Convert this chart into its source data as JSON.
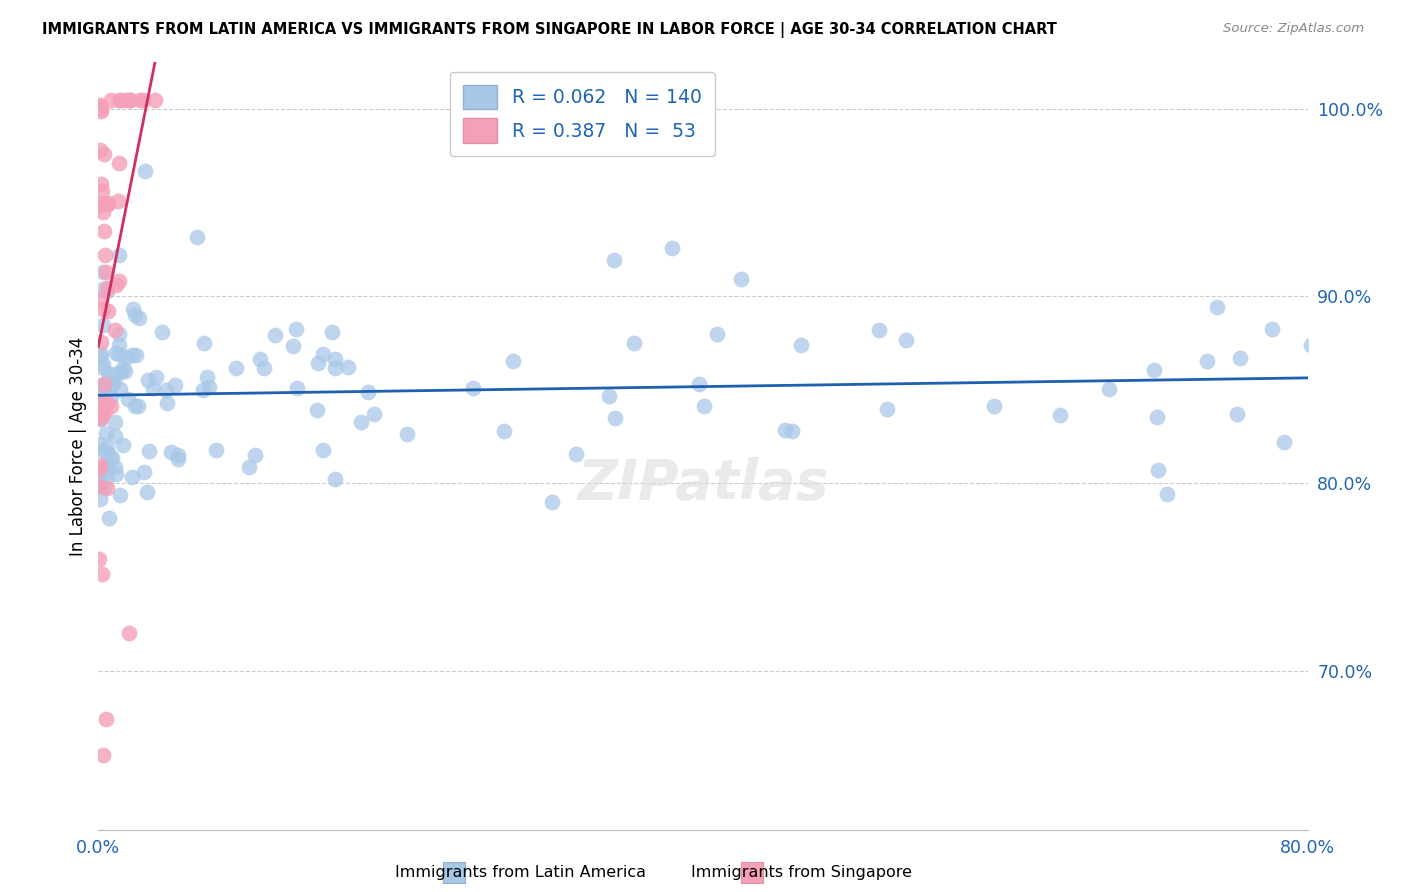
{
  "title": "IMMIGRANTS FROM LATIN AMERICA VS IMMIGRANTS FROM SINGAPORE IN LABOR FORCE | AGE 30-34 CORRELATION CHART",
  "source": "Source: ZipAtlas.com",
  "xlabel_label": "Immigrants from Latin America",
  "xlabel_label2": "Immigrants from Singapore",
  "ylabel": "In Labor Force | Age 30-34",
  "xlim": [
    0.0,
    0.8
  ],
  "ylim": [
    0.615,
    1.025
  ],
  "yticks": [
    0.7,
    0.8,
    0.9,
    1.0
  ],
  "ytick_labels": [
    "70.0%",
    "80.0%",
    "90.0%",
    "100.0%"
  ],
  "blue_R": 0.062,
  "blue_N": 140,
  "pink_R": 0.387,
  "pink_N": 53,
  "blue_color": "#a8c8e8",
  "pink_color": "#f4a0b8",
  "blue_line_color": "#2060b0",
  "pink_line_color": "#d03060",
  "grid_color": "#cccccc",
  "watermark": "ZIPatlas"
}
